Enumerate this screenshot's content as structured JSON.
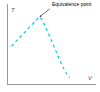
{
  "chart_data": {
    "type": "line",
    "x": [
      0.04,
      0.07,
      0.1,
      0.13,
      0.16,
      0.19,
      0.22,
      0.25,
      0.28,
      0.31,
      0.34,
      0.36,
      0.39,
      0.42,
      0.46,
      0.5,
      0.54,
      0.58,
      0.62,
      0.66,
      0.7
    ],
    "values": [
      0.47,
      0.51,
      0.54,
      0.58,
      0.61,
      0.65,
      0.68,
      0.72,
      0.75,
      0.79,
      0.82,
      0.84,
      0.8,
      0.73,
      0.63,
      0.52,
      0.41,
      0.31,
      0.22,
      0.14,
      0.08
    ],
    "color": "#00ccee",
    "line_style": "dotted",
    "xlabel": "V",
    "ylabel": "T",
    "annotations": [
      {
        "text": "Equivalence point",
        "x": 0.36,
        "y": 0.84
      }
    ],
    "xlim": [
      0,
      1
    ],
    "ylim": [
      0,
      1
    ],
    "tick_labels": false,
    "grid": false
  }
}
